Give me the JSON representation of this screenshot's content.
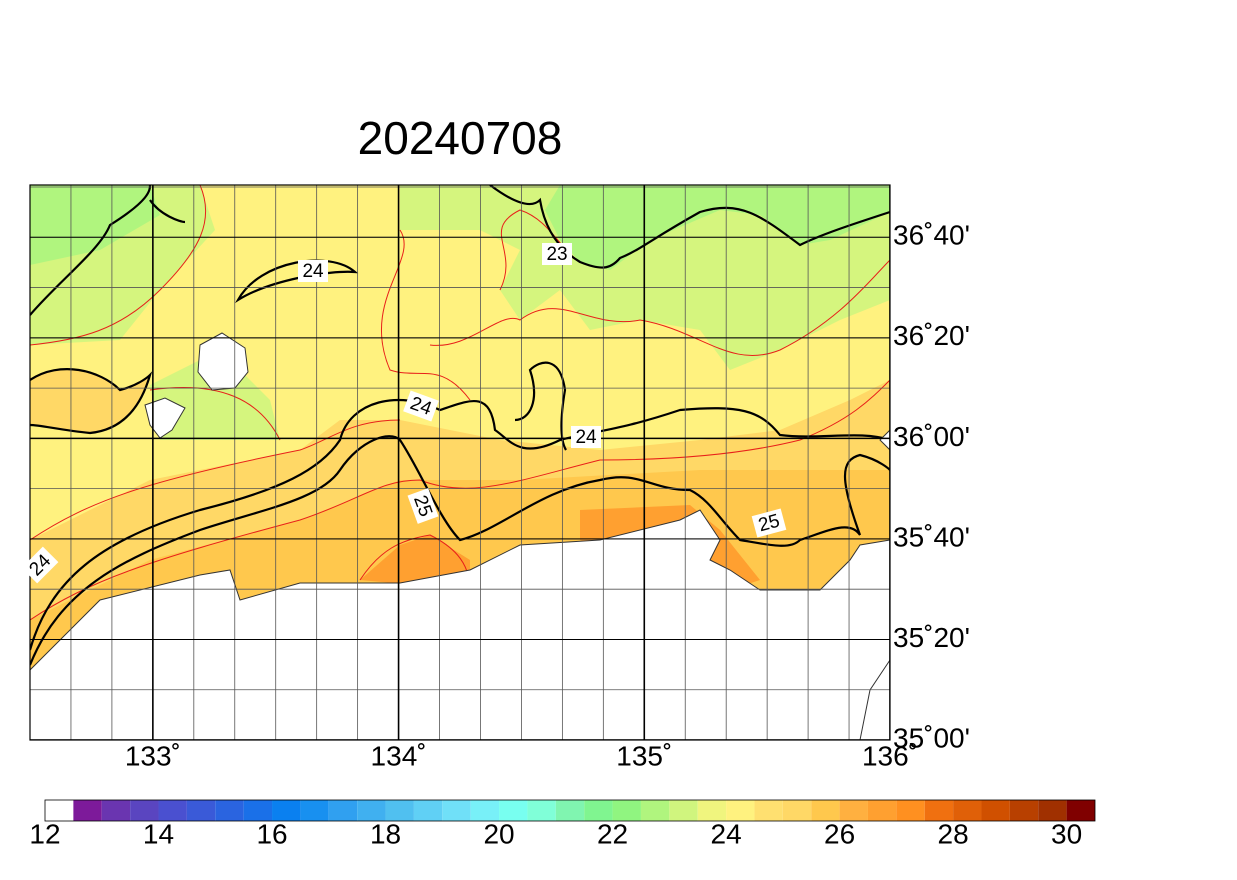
{
  "map": {
    "title": "20240708",
    "lon_lim": [
      132.5,
      136
    ],
    "lat_lim": [
      35.0,
      36.84
    ],
    "lon_ticks": [
      {
        "value": 133,
        "label": "133˚"
      },
      {
        "value": 134,
        "label": "134˚"
      },
      {
        "value": 135,
        "label": "135˚"
      },
      {
        "value": 136,
        "label": "136˚"
      }
    ],
    "lat_ticks": [
      {
        "value": 36.6667,
        "label": "36˚40'"
      },
      {
        "value": 36.3333,
        "label": "36˚20'"
      },
      {
        "value": 36.0,
        "label": "36˚00'"
      },
      {
        "value": 35.6667,
        "label": "35˚40'"
      },
      {
        "value": 35.3333,
        "label": "35˚20'"
      },
      {
        "value": 35.0,
        "label": "35˚00'"
      }
    ],
    "contour_labels": [
      24,
      23,
      24,
      24,
      25,
      25,
      24
    ],
    "colorbar": {
      "lim": [
        12,
        30.5
      ],
      "ticks": [
        12,
        14,
        16,
        18,
        20,
        22,
        24,
        26,
        28,
        30
      ],
      "colors": [
        "#ffffff",
        "#7d1a9a",
        "#6a35b0",
        "#5a45c0",
        "#4a50d0",
        "#3a5ad8",
        "#2a64e0",
        "#1a70e8",
        "#0a80f0",
        "#1890f0",
        "#30a0f0",
        "#40b0f0",
        "#50c0f0",
        "#60d0f5",
        "#70e0f8",
        "#78f0f8",
        "#78fff0",
        "#80ffd8",
        "#80f5b0",
        "#80f590",
        "#90f580",
        "#b0f57e",
        "#d0f57e",
        "#f0f57e",
        "#fff27f",
        "#ffe070",
        "#ffd866",
        "#ffc84d",
        "#ffb040",
        "#ffa030",
        "#ff9020",
        "#f07010",
        "#e06008",
        "#d05000",
        "#b84000",
        "#a03000",
        "#800000"
      ]
    }
  }
}
